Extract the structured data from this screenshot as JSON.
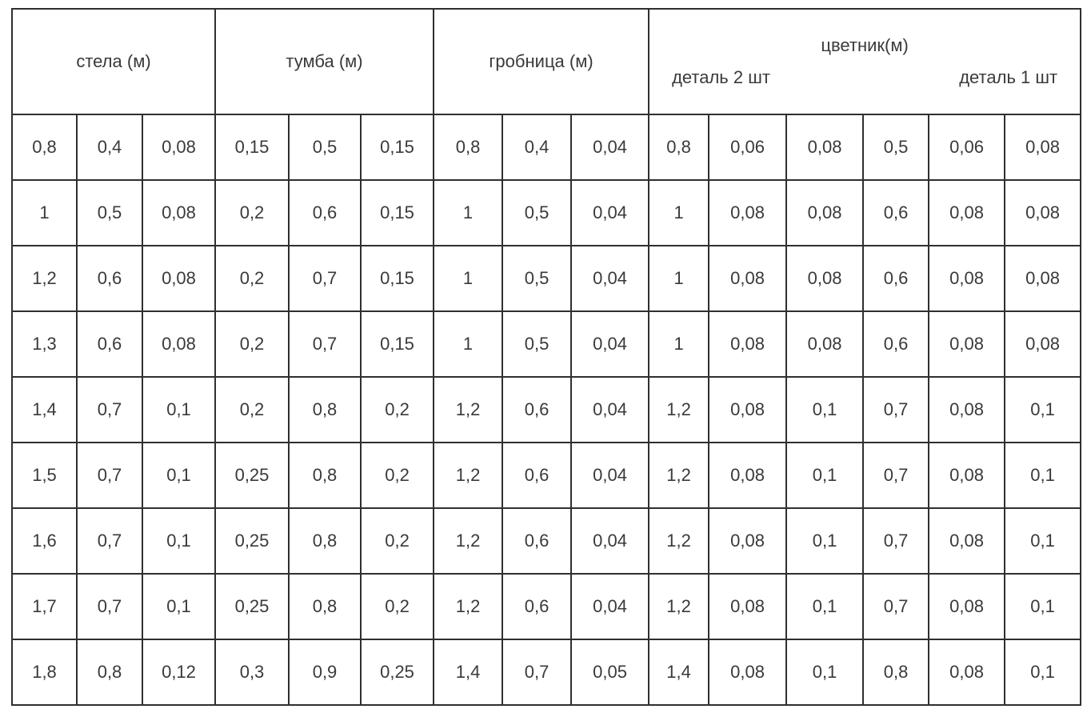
{
  "table": {
    "title": "memorial-dimensions-table",
    "border_color": "#2f2f2f",
    "text_color": "#3a3a3a",
    "groups": [
      {
        "label": "стела (м)",
        "colspan": 3
      },
      {
        "label": "тумба (м)",
        "colspan": 3
      },
      {
        "label": "гробница (м)",
        "colspan": 3
      },
      {
        "label": "цветник(м)",
        "colspan": 6,
        "sublabels": [
          "деталь 2 шт",
          "деталь 1 шт"
        ]
      }
    ],
    "rows": [
      [
        "0,8",
        "0,4",
        "0,08",
        "0,15",
        "0,5",
        "0,15",
        "0,8",
        "0,4",
        "0,04",
        "0,8",
        "0,06",
        "0,08",
        "0,5",
        "0,06",
        "0,08"
      ],
      [
        "1",
        "0,5",
        "0,08",
        "0,2",
        "0,6",
        "0,15",
        "1",
        "0,5",
        "0,04",
        "1",
        "0,08",
        "0,08",
        "0,6",
        "0,08",
        "0,08"
      ],
      [
        "1,2",
        "0,6",
        "0,08",
        "0,2",
        "0,7",
        "0,15",
        "1",
        "0,5",
        "0,04",
        "1",
        "0,08",
        "0,08",
        "0,6",
        "0,08",
        "0,08"
      ],
      [
        "1,3",
        "0,6",
        "0,08",
        "0,2",
        "0,7",
        "0,15",
        "1",
        "0,5",
        "0,04",
        "1",
        "0,08",
        "0,08",
        "0,6",
        "0,08",
        "0,08"
      ],
      [
        "1,4",
        "0,7",
        "0,1",
        "0,2",
        "0,8",
        "0,2",
        "1,2",
        "0,6",
        "0,04",
        "1,2",
        "0,08",
        "0,1",
        "0,7",
        "0,08",
        "0,1"
      ],
      [
        "1,5",
        "0,7",
        "0,1",
        "0,25",
        "0,8",
        "0,2",
        "1,2",
        "0,6",
        "0,04",
        "1,2",
        "0,08",
        "0,1",
        "0,7",
        "0,08",
        "0,1"
      ],
      [
        "1,6",
        "0,7",
        "0,1",
        "0,25",
        "0,8",
        "0,2",
        "1,2",
        "0,6",
        "0,04",
        "1,2",
        "0,08",
        "0,1",
        "0,7",
        "0,08",
        "0,1"
      ],
      [
        "1,7",
        "0,7",
        "0,1",
        "0,25",
        "0,8",
        "0,2",
        "1,2",
        "0,6",
        "0,04",
        "1,2",
        "0,08",
        "0,1",
        "0,7",
        "0,08",
        "0,1"
      ],
      [
        "1,8",
        "0,8",
        "0,12",
        "0,3",
        "0,9",
        "0,25",
        "1,4",
        "0,7",
        "0,05",
        "1,4",
        "0,08",
        "0,1",
        "0,8",
        "0,08",
        "0,1"
      ]
    ]
  }
}
